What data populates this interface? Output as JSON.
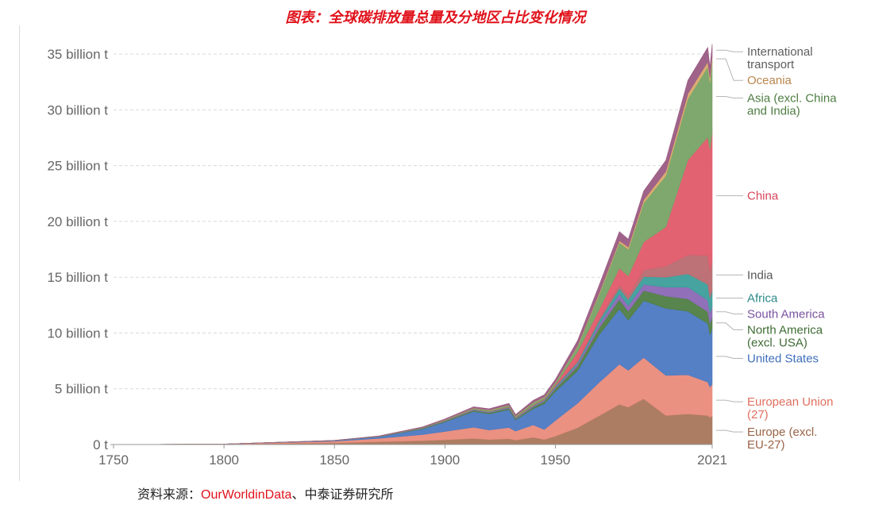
{
  "title": "图表：全球碳排放量总量及分地区占比变化情况",
  "source": {
    "prefix": "资料来源：",
    "name": "OurWorldinData",
    "suffix": "、中泰证券研究所"
  },
  "chart_data": {
    "type": "area",
    "stacked": true,
    "xlim": [
      1750,
      2021
    ],
    "ylim": [
      0,
      37
    ],
    "x_ticks": [
      "1750",
      "1800",
      "1850",
      "1900",
      "1950",
      "2021"
    ],
    "y_ticks": [
      {
        "value": 0,
        "label": "0 t"
      },
      {
        "value": 5,
        "label": "5 billion t"
      },
      {
        "value": 10,
        "label": "10 billion t"
      },
      {
        "value": 15,
        "label": "15 billion t"
      },
      {
        "value": 20,
        "label": "20 billion t"
      },
      {
        "value": 25,
        "label": "25 billion t"
      },
      {
        "value": 30,
        "label": "30 billion t"
      },
      {
        "value": 35,
        "label": "35 billion t"
      }
    ],
    "grid": true,
    "legend": "right",
    "x": [
      1750,
      1800,
      1850,
      1870,
      1890,
      1900,
      1913,
      1920,
      1929,
      1932,
      1940,
      1945,
      1950,
      1960,
      1970,
      1979,
      1983,
      1990,
      2000,
      2010,
      2019,
      2020,
      2021
    ],
    "series": [
      {
        "name": "Europe (excl. EU-27)",
        "color": "#a8765a",
        "values": [
          0,
          0.02,
          0.15,
          0.25,
          0.35,
          0.42,
          0.55,
          0.45,
          0.52,
          0.4,
          0.65,
          0.45,
          0.75,
          1.5,
          2.6,
          3.6,
          3.35,
          4.1,
          2.6,
          2.75,
          2.6,
          2.45,
          2.55
        ]
      },
      {
        "name": "European Union (27)",
        "color": "#e98b7b",
        "values": [
          0,
          0.02,
          0.15,
          0.3,
          0.55,
          0.75,
          1.0,
          0.85,
          1.0,
          0.8,
          1.1,
          0.9,
          1.4,
          2.2,
          3.0,
          3.6,
          3.3,
          3.7,
          3.6,
          3.5,
          3.0,
          2.7,
          2.85
        ]
      },
      {
        "name": "United States",
        "color": "#4c79c3",
        "values": [
          0,
          0,
          0.05,
          0.15,
          0.5,
          0.85,
          1.4,
          1.45,
          1.6,
          1.0,
          1.45,
          2.3,
          2.6,
          2.9,
          4.3,
          4.95,
          4.5,
          5.1,
          6.0,
          5.7,
          5.25,
          4.7,
          5.0
        ]
      },
      {
        "name": "North America (excl. USA)",
        "color": "#4f7d43",
        "values": [
          0,
          0,
          0.01,
          0.02,
          0.05,
          0.07,
          0.1,
          0.1,
          0.12,
          0.1,
          0.15,
          0.2,
          0.25,
          0.4,
          0.6,
          0.85,
          0.8,
          0.9,
          1.1,
          1.1,
          1.05,
          1.0,
          1.0
        ]
      },
      {
        "name": "South America",
        "color": "#8a68b4",
        "values": [
          0,
          0,
          0,
          0.01,
          0.02,
          0.03,
          0.05,
          0.05,
          0.06,
          0.05,
          0.07,
          0.08,
          0.1,
          0.2,
          0.35,
          0.5,
          0.5,
          0.55,
          0.8,
          1.05,
          1.05,
          0.95,
          1.0
        ]
      },
      {
        "name": "Africa",
        "color": "#3c9e9b",
        "values": [
          0,
          0,
          0,
          0,
          0.01,
          0.01,
          0.03,
          0.03,
          0.04,
          0.04,
          0.05,
          0.06,
          0.1,
          0.15,
          0.3,
          0.5,
          0.55,
          0.7,
          0.9,
          1.2,
          1.4,
          1.35,
          1.45
        ]
      },
      {
        "name": "India",
        "color": "#b96a70",
        "values": [
          0,
          0,
          0,
          0,
          0.01,
          0.02,
          0.03,
          0.03,
          0.04,
          0.04,
          0.05,
          0.06,
          0.07,
          0.13,
          0.2,
          0.3,
          0.4,
          0.6,
          1.0,
          1.7,
          2.6,
          2.4,
          2.7
        ]
      },
      {
        "name": "China",
        "color": "#e05a6a",
        "values": [
          0,
          0,
          0,
          0,
          0,
          0,
          0.01,
          0.01,
          0.02,
          0.02,
          0.03,
          0.03,
          0.08,
          0.8,
          0.8,
          1.5,
          1.7,
          2.5,
          3.5,
          8.5,
          10.6,
          10.9,
          11.5
        ]
      },
      {
        "name": "Asia (excl. China and India)",
        "color": "#77a366",
        "values": [
          0,
          0,
          0.01,
          0.02,
          0.04,
          0.05,
          0.08,
          0.1,
          0.12,
          0.1,
          0.2,
          0.15,
          0.2,
          0.5,
          1.4,
          2.3,
          2.4,
          3.5,
          4.6,
          5.5,
          6.3,
          6.0,
          6.3
        ]
      },
      {
        "name": "Oceania",
        "color": "#d9a96a",
        "values": [
          0,
          0,
          0,
          0,
          0.01,
          0.01,
          0.02,
          0.02,
          0.02,
          0.02,
          0.03,
          0.03,
          0.04,
          0.07,
          0.12,
          0.18,
          0.2,
          0.28,
          0.38,
          0.45,
          0.45,
          0.44,
          0.45
        ]
      },
      {
        "name": "International transport",
        "color": "#9a5b83",
        "values": [
          0,
          0,
          0.01,
          0.02,
          0.05,
          0.08,
          0.12,
          0.12,
          0.15,
          0.12,
          0.18,
          0.2,
          0.25,
          0.45,
          0.7,
          0.8,
          0.7,
          0.8,
          1.0,
          1.2,
          1.3,
          0.95,
          1.1
        ]
      }
    ],
    "labels": [
      {
        "series": "International transport",
        "lines": [
          "International",
          "transport"
        ],
        "color": "#5e5e5e"
      },
      {
        "series": "Oceania",
        "lines": [
          "Oceania"
        ],
        "color": "#b9864e"
      },
      {
        "series": "Asia (excl. China and India)",
        "lines": [
          "Asia (excl. China",
          "and India)"
        ],
        "color": "#4f7d43"
      },
      {
        "series": "China",
        "lines": [
          "China"
        ],
        "color": "#d8455a"
      },
      {
        "series": "India",
        "lines": [
          "India"
        ],
        "color": "#555555"
      },
      {
        "series": "Africa",
        "lines": [
          "Africa"
        ],
        "color": "#2d8a8a"
      },
      {
        "series": "South America",
        "lines": [
          "South America"
        ],
        "color": "#7a529f"
      },
      {
        "series": "North America (excl. USA)",
        "lines": [
          "North America",
          "(excl. USA)"
        ],
        "color": "#3e6b33"
      },
      {
        "series": "United States",
        "lines": [
          "United States"
        ],
        "color": "#3f6fbc"
      },
      {
        "series": "European Union (27)",
        "lines": [
          "European Union",
          "(27)"
        ],
        "color": "#e06f5f"
      },
      {
        "series": "Europe (excl. EU-27)",
        "lines": [
          "Europe (excl.",
          "EU-27)"
        ],
        "color": "#996447"
      }
    ]
  }
}
